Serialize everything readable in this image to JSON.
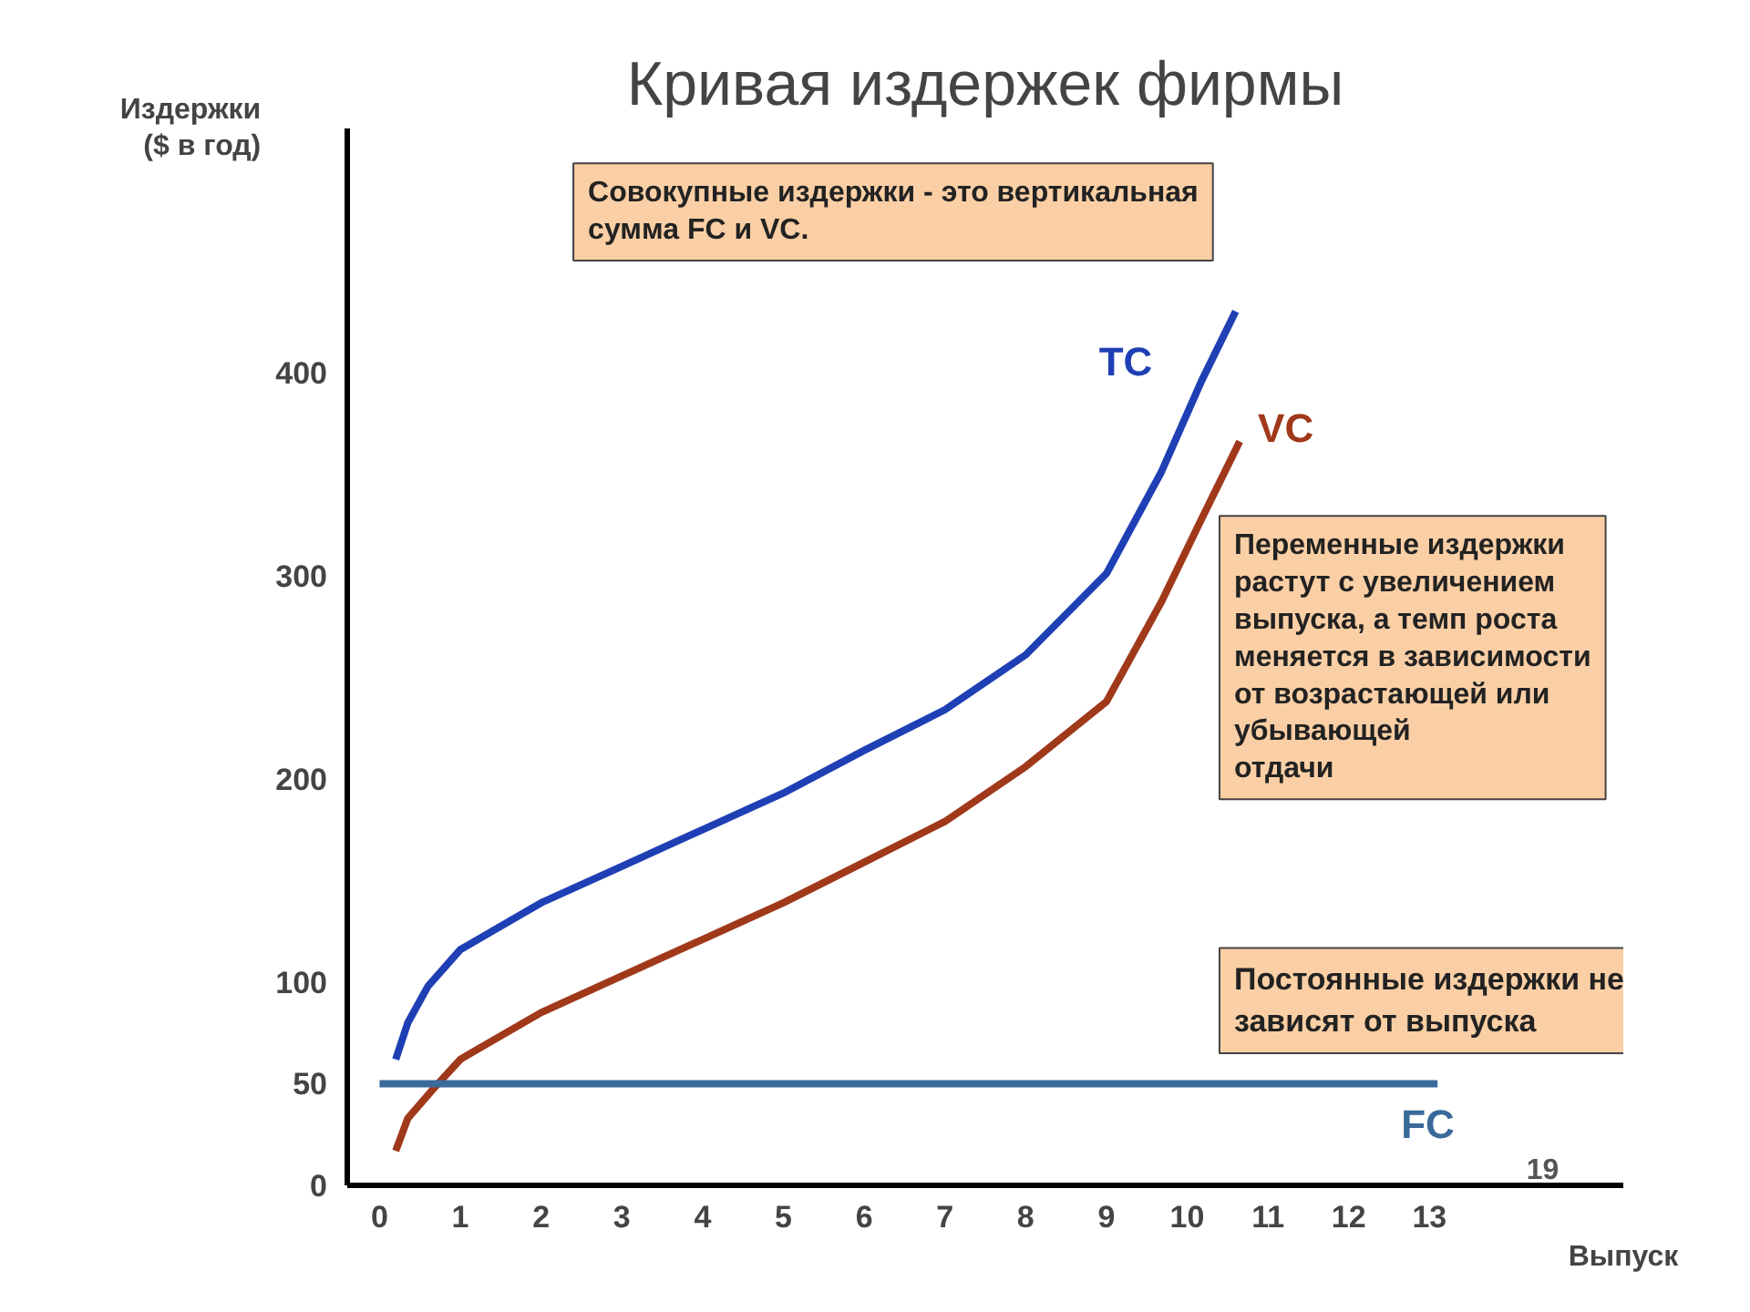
{
  "chart_data": {
    "type": "line",
    "title": "Кривая издержек фирмы",
    "ylabel": "Издержки\n($ в год)",
    "xlabel": "Выпуск",
    "xlim": [
      -0.4,
      15.4
    ],
    "ylim": [
      0,
      520
    ],
    "xticks": [
      0,
      1,
      2,
      3,
      4,
      5,
      6,
      7,
      8,
      9,
      10,
      11,
      12,
      13
    ],
    "yticks": [
      0,
      50,
      100,
      200,
      300,
      400
    ],
    "line_style": "solid",
    "series": [
      {
        "name": "TC",
        "color": "#1f3fb5",
        "x": [
          0.2,
          0.35,
          0.6,
          1,
          2,
          3,
          4,
          5,
          6,
          7,
          8,
          9,
          9.68,
          10.18,
          10.6
        ],
        "values": [
          62,
          80,
          98,
          116,
          139,
          157,
          175,
          193,
          214,
          234,
          261,
          301,
          351,
          396,
          430
        ]
      },
      {
        "name": "VC",
        "color": "#a0381a",
        "x": [
          0.2,
          0.35,
          0.7,
          1,
          2,
          3,
          4,
          5,
          6,
          7,
          8,
          9,
          9.68,
          10.18,
          10.65
        ],
        "values": [
          17,
          33,
          49,
          62,
          85,
          103,
          121,
          139,
          159,
          179,
          206,
          238,
          287,
          328,
          366
        ]
      },
      {
        "name": "FC",
        "color": "#3a6a9a",
        "x": [
          0,
          13.1
        ],
        "values": [
          50,
          50
        ]
      }
    ],
    "annotations": [
      "Совокупные издержки - это вертикальная\nсумма FC и VC.",
      "Переменные издержки\nрастут с увеличением\nвыпуска, а темп роста\nменяется в зависимости\nот возрастающей или\nубывающей\nотдачи",
      "Постоянные издержки не\nзависят от выпуска",
      "19"
    ]
  }
}
